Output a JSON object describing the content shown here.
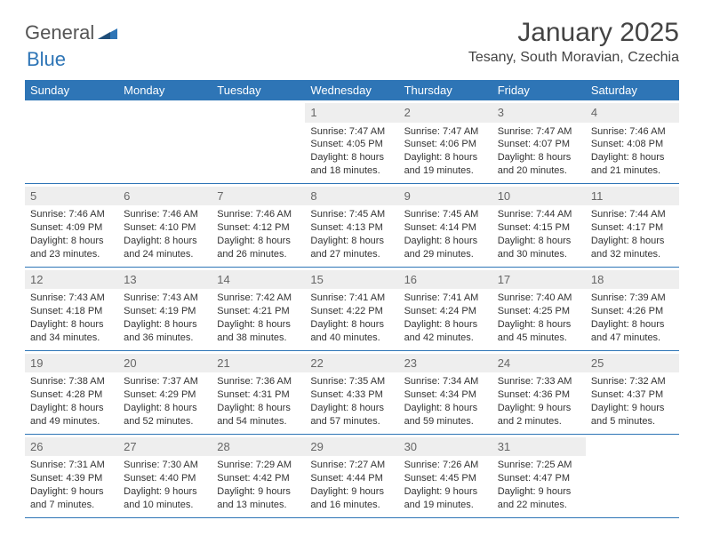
{
  "logo": {
    "text1": "General",
    "text2": "Blue"
  },
  "title": "January 2025",
  "location": "Tesany, South Moravian, Czechia",
  "day_labels": [
    "Sunday",
    "Monday",
    "Tuesday",
    "Wednesday",
    "Thursday",
    "Friday",
    "Saturday"
  ],
  "colors": {
    "header_bg": "#2e75b6",
    "header_text": "#ffffff",
    "daynum_bg": "#eeeeee",
    "daynum_text": "#666666",
    "cell_text": "#333333",
    "divider": "#2e75b6",
    "logo_accent": "#2e75b6",
    "page_bg": "#ffffff"
  },
  "typography": {
    "title_fontsize": 30,
    "location_fontsize": 16,
    "daylabel_fontsize": 13,
    "daynum_fontsize": 13,
    "cell_fontsize": 11
  },
  "weeks": [
    [
      {
        "n": "",
        "sunrise": "",
        "sunset": "",
        "daylight": ""
      },
      {
        "n": "",
        "sunrise": "",
        "sunset": "",
        "daylight": ""
      },
      {
        "n": "",
        "sunrise": "",
        "sunset": "",
        "daylight": ""
      },
      {
        "n": "1",
        "sunrise": "Sunrise: 7:47 AM",
        "sunset": "Sunset: 4:05 PM",
        "daylight": "Daylight: 8 hours and 18 minutes."
      },
      {
        "n": "2",
        "sunrise": "Sunrise: 7:47 AM",
        "sunset": "Sunset: 4:06 PM",
        "daylight": "Daylight: 8 hours and 19 minutes."
      },
      {
        "n": "3",
        "sunrise": "Sunrise: 7:47 AM",
        "sunset": "Sunset: 4:07 PM",
        "daylight": "Daylight: 8 hours and 20 minutes."
      },
      {
        "n": "4",
        "sunrise": "Sunrise: 7:46 AM",
        "sunset": "Sunset: 4:08 PM",
        "daylight": "Daylight: 8 hours and 21 minutes."
      }
    ],
    [
      {
        "n": "5",
        "sunrise": "Sunrise: 7:46 AM",
        "sunset": "Sunset: 4:09 PM",
        "daylight": "Daylight: 8 hours and 23 minutes."
      },
      {
        "n": "6",
        "sunrise": "Sunrise: 7:46 AM",
        "sunset": "Sunset: 4:10 PM",
        "daylight": "Daylight: 8 hours and 24 minutes."
      },
      {
        "n": "7",
        "sunrise": "Sunrise: 7:46 AM",
        "sunset": "Sunset: 4:12 PM",
        "daylight": "Daylight: 8 hours and 26 minutes."
      },
      {
        "n": "8",
        "sunrise": "Sunrise: 7:45 AM",
        "sunset": "Sunset: 4:13 PM",
        "daylight": "Daylight: 8 hours and 27 minutes."
      },
      {
        "n": "9",
        "sunrise": "Sunrise: 7:45 AM",
        "sunset": "Sunset: 4:14 PM",
        "daylight": "Daylight: 8 hours and 29 minutes."
      },
      {
        "n": "10",
        "sunrise": "Sunrise: 7:44 AM",
        "sunset": "Sunset: 4:15 PM",
        "daylight": "Daylight: 8 hours and 30 minutes."
      },
      {
        "n": "11",
        "sunrise": "Sunrise: 7:44 AM",
        "sunset": "Sunset: 4:17 PM",
        "daylight": "Daylight: 8 hours and 32 minutes."
      }
    ],
    [
      {
        "n": "12",
        "sunrise": "Sunrise: 7:43 AM",
        "sunset": "Sunset: 4:18 PM",
        "daylight": "Daylight: 8 hours and 34 minutes."
      },
      {
        "n": "13",
        "sunrise": "Sunrise: 7:43 AM",
        "sunset": "Sunset: 4:19 PM",
        "daylight": "Daylight: 8 hours and 36 minutes."
      },
      {
        "n": "14",
        "sunrise": "Sunrise: 7:42 AM",
        "sunset": "Sunset: 4:21 PM",
        "daylight": "Daylight: 8 hours and 38 minutes."
      },
      {
        "n": "15",
        "sunrise": "Sunrise: 7:41 AM",
        "sunset": "Sunset: 4:22 PM",
        "daylight": "Daylight: 8 hours and 40 minutes."
      },
      {
        "n": "16",
        "sunrise": "Sunrise: 7:41 AM",
        "sunset": "Sunset: 4:24 PM",
        "daylight": "Daylight: 8 hours and 42 minutes."
      },
      {
        "n": "17",
        "sunrise": "Sunrise: 7:40 AM",
        "sunset": "Sunset: 4:25 PM",
        "daylight": "Daylight: 8 hours and 45 minutes."
      },
      {
        "n": "18",
        "sunrise": "Sunrise: 7:39 AM",
        "sunset": "Sunset: 4:26 PM",
        "daylight": "Daylight: 8 hours and 47 minutes."
      }
    ],
    [
      {
        "n": "19",
        "sunrise": "Sunrise: 7:38 AM",
        "sunset": "Sunset: 4:28 PM",
        "daylight": "Daylight: 8 hours and 49 minutes."
      },
      {
        "n": "20",
        "sunrise": "Sunrise: 7:37 AM",
        "sunset": "Sunset: 4:29 PM",
        "daylight": "Daylight: 8 hours and 52 minutes."
      },
      {
        "n": "21",
        "sunrise": "Sunrise: 7:36 AM",
        "sunset": "Sunset: 4:31 PM",
        "daylight": "Daylight: 8 hours and 54 minutes."
      },
      {
        "n": "22",
        "sunrise": "Sunrise: 7:35 AM",
        "sunset": "Sunset: 4:33 PM",
        "daylight": "Daylight: 8 hours and 57 minutes."
      },
      {
        "n": "23",
        "sunrise": "Sunrise: 7:34 AM",
        "sunset": "Sunset: 4:34 PM",
        "daylight": "Daylight: 8 hours and 59 minutes."
      },
      {
        "n": "24",
        "sunrise": "Sunrise: 7:33 AM",
        "sunset": "Sunset: 4:36 PM",
        "daylight": "Daylight: 9 hours and 2 minutes."
      },
      {
        "n": "25",
        "sunrise": "Sunrise: 7:32 AM",
        "sunset": "Sunset: 4:37 PM",
        "daylight": "Daylight: 9 hours and 5 minutes."
      }
    ],
    [
      {
        "n": "26",
        "sunrise": "Sunrise: 7:31 AM",
        "sunset": "Sunset: 4:39 PM",
        "daylight": "Daylight: 9 hours and 7 minutes."
      },
      {
        "n": "27",
        "sunrise": "Sunrise: 7:30 AM",
        "sunset": "Sunset: 4:40 PM",
        "daylight": "Daylight: 9 hours and 10 minutes."
      },
      {
        "n": "28",
        "sunrise": "Sunrise: 7:29 AM",
        "sunset": "Sunset: 4:42 PM",
        "daylight": "Daylight: 9 hours and 13 minutes."
      },
      {
        "n": "29",
        "sunrise": "Sunrise: 7:27 AM",
        "sunset": "Sunset: 4:44 PM",
        "daylight": "Daylight: 9 hours and 16 minutes."
      },
      {
        "n": "30",
        "sunrise": "Sunrise: 7:26 AM",
        "sunset": "Sunset: 4:45 PM",
        "daylight": "Daylight: 9 hours and 19 minutes."
      },
      {
        "n": "31",
        "sunrise": "Sunrise: 7:25 AM",
        "sunset": "Sunset: 4:47 PM",
        "daylight": "Daylight: 9 hours and 22 minutes."
      },
      {
        "n": "",
        "sunrise": "",
        "sunset": "",
        "daylight": ""
      }
    ]
  ]
}
